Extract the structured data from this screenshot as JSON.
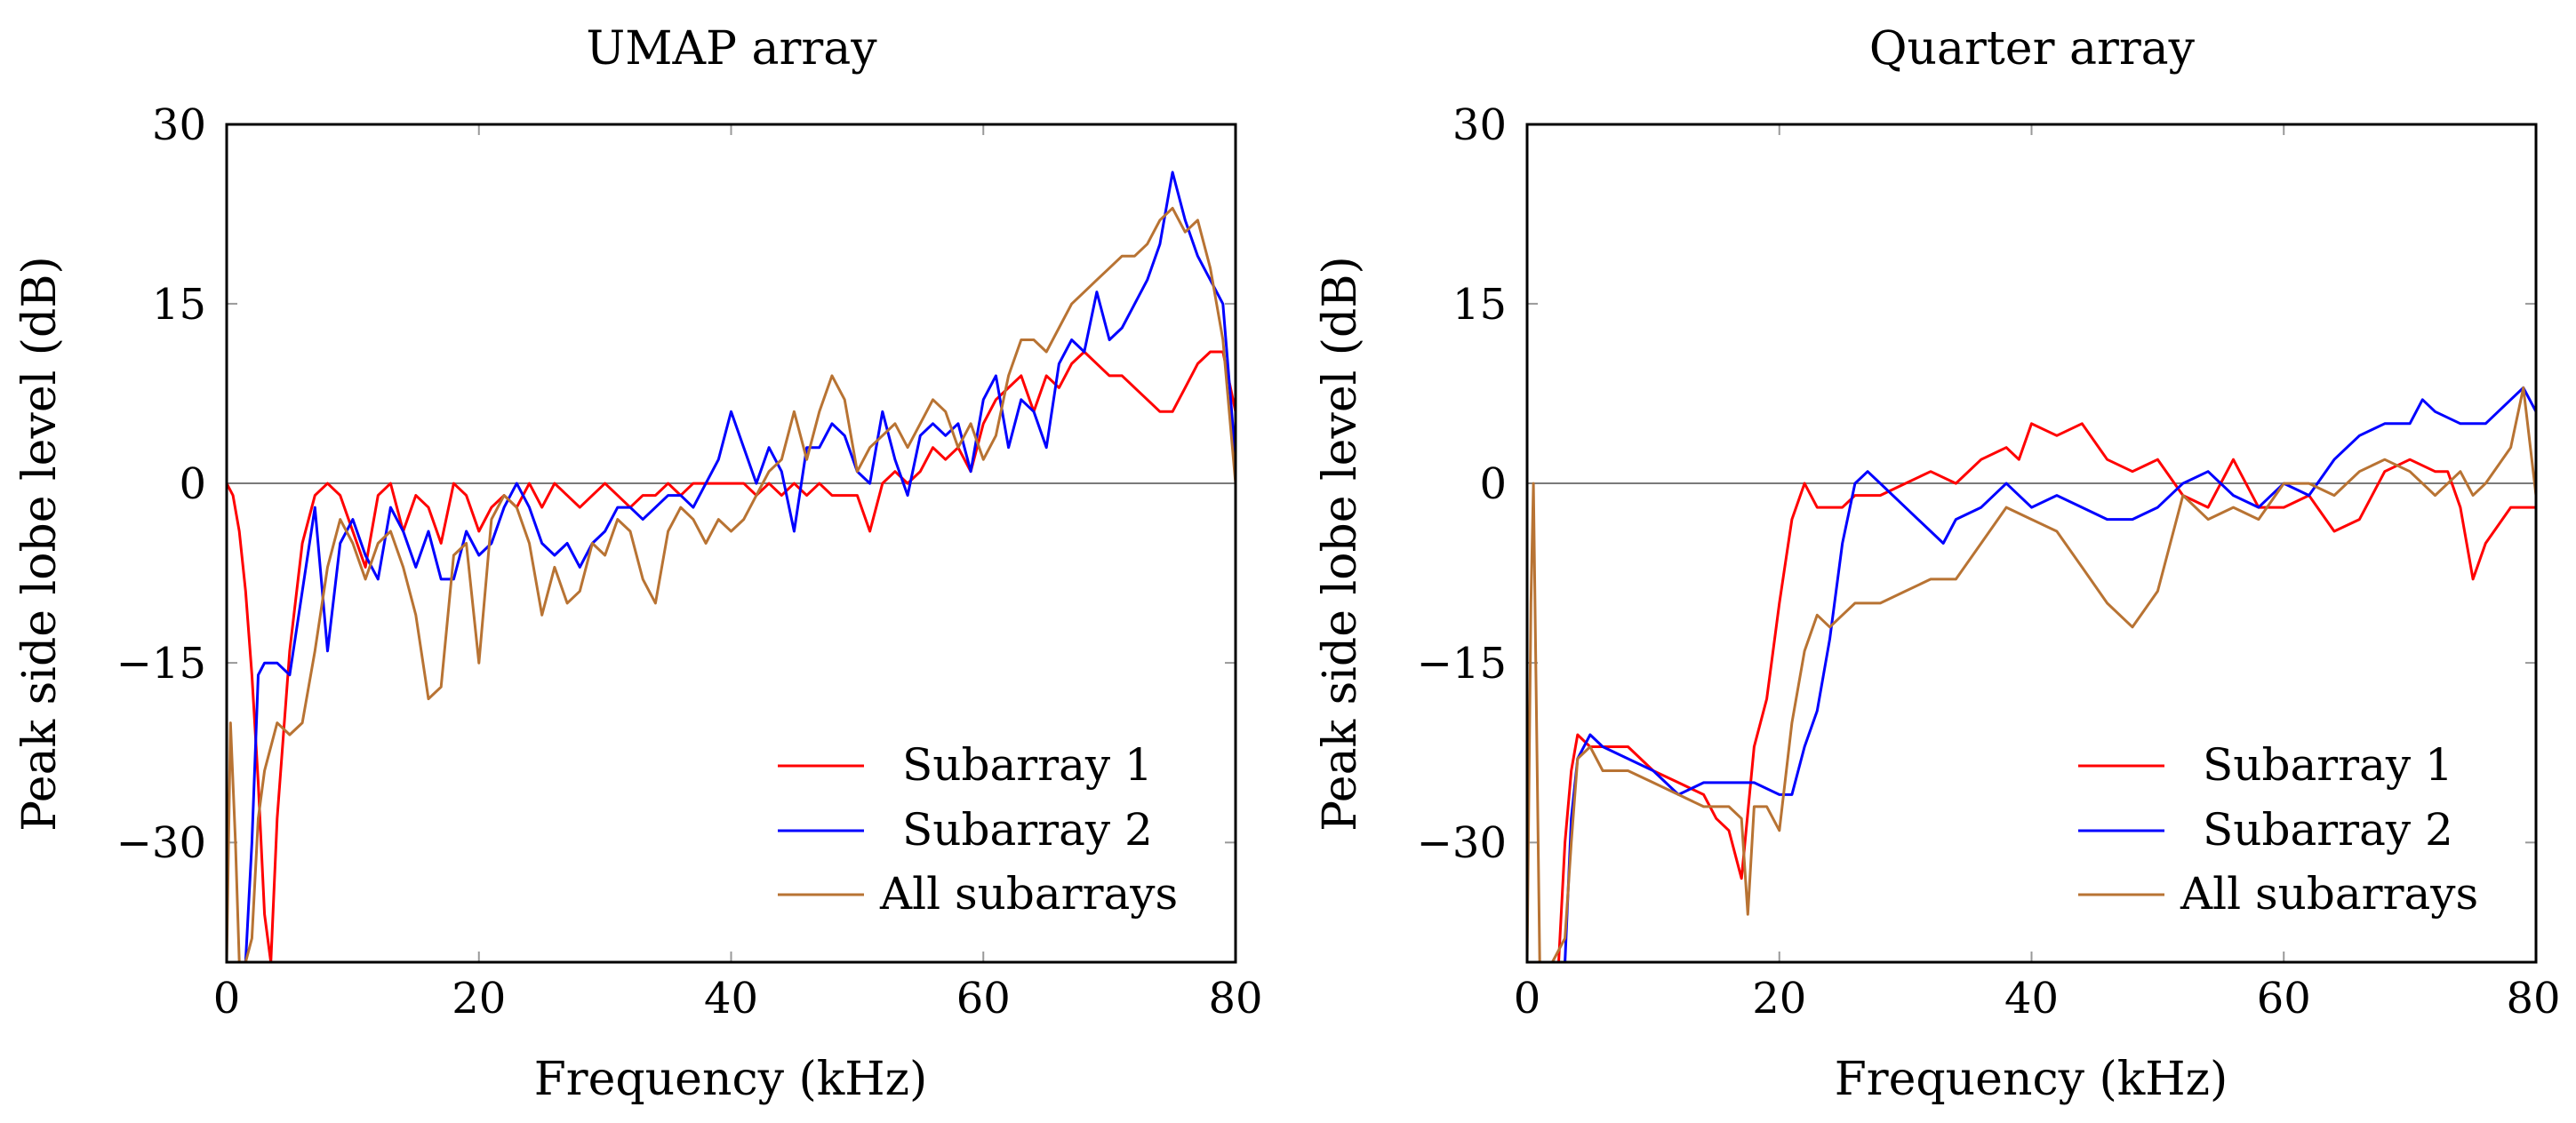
{
  "chart_data": [
    {
      "type": "line",
      "title": "UMAP array",
      "xlabel": "Frequency (kHz)",
      "ylabel": "Peak side lobe level (dB)",
      "xlim": [
        0,
        80
      ],
      "ylim": [
        -40,
        30
      ],
      "xticks": [
        "0",
        "20",
        "40",
        "60",
        "80"
      ],
      "yticks": [
        "−30",
        "−15",
        "0",
        "15",
        "30"
      ],
      "reference_line_y": 0,
      "grid": false,
      "legend_position": "bottom-right",
      "series": [
        {
          "name": "Subarray 1",
          "color": "#ff0000",
          "x": [
            0,
            0.5,
            1,
            1.5,
            2,
            2.5,
            3,
            3.5,
            4,
            5,
            6,
            7,
            8,
            9,
            10,
            11,
            12,
            13,
            14,
            15,
            16,
            17,
            18,
            19,
            20,
            21,
            22,
            23,
            24,
            25,
            26,
            27,
            28,
            29,
            30,
            31,
            32,
            33,
            34,
            35,
            36,
            37,
            38,
            39,
            40,
            41,
            42,
            43,
            44,
            45,
            46,
            47,
            48,
            49,
            50,
            51,
            52,
            53,
            54,
            55,
            56,
            57,
            58,
            59,
            60,
            61,
            62,
            63,
            64,
            65,
            66,
            67,
            68,
            69,
            70,
            71,
            72,
            73,
            74,
            75,
            76,
            77,
            78,
            79,
            80
          ],
          "y": [
            0,
            -1,
            -4,
            -9,
            -16,
            -25,
            -36,
            -42,
            -28,
            -14,
            -5,
            -1,
            0,
            -1,
            -4,
            -7,
            -1,
            0,
            -4,
            -1,
            -2,
            -5,
            0,
            -1,
            -4,
            -2,
            -1,
            -2,
            0,
            -2,
            0,
            -1,
            -2,
            -1,
            0,
            -1,
            -2,
            -1,
            -1,
            0,
            -1,
            0,
            0,
            0,
            0,
            0,
            -1,
            0,
            -1,
            0,
            -1,
            0,
            -1,
            -1,
            -1,
            -4,
            0,
            1,
            0,
            1,
            3,
            2,
            3,
            1,
            5,
            7,
            8,
            9,
            6,
            9,
            8,
            10,
            11,
            10,
            9,
            9,
            8,
            7,
            6,
            6,
            8,
            10,
            11,
            11,
            6
          ]
        },
        {
          "name": "Subarray 2",
          "color": "#0000ff",
          "x": [
            1.5,
            2,
            2.5,
            3,
            4,
            5,
            6,
            7,
            8,
            9,
            10,
            11,
            12,
            13,
            14,
            15,
            16,
            17,
            18,
            19,
            20,
            21,
            22,
            23,
            24,
            25,
            26,
            27,
            28,
            29,
            30,
            31,
            32,
            33,
            34,
            35,
            36,
            37,
            38,
            39,
            40,
            41,
            42,
            43,
            44,
            45,
            46,
            47,
            48,
            49,
            50,
            51,
            52,
            53,
            54,
            55,
            56,
            57,
            58,
            59,
            60,
            61,
            62,
            63,
            64,
            65,
            66,
            67,
            68,
            69,
            70,
            71,
            72,
            73,
            74,
            75,
            76,
            77,
            78,
            79,
            80
          ],
          "y": [
            -40,
            -30,
            -16,
            -15,
            -15,
            -16,
            -9,
            -2,
            -14,
            -5,
            -3,
            -6,
            -8,
            -2,
            -4,
            -7,
            -4,
            -8,
            -8,
            -4,
            -6,
            -5,
            -2,
            0,
            -2,
            -5,
            -6,
            -5,
            -7,
            -5,
            -4,
            -2,
            -2,
            -3,
            -2,
            -1,
            -1,
            -2,
            0,
            2,
            6,
            3,
            0,
            3,
            1,
            -4,
            3,
            3,
            5,
            4,
            1,
            0,
            6,
            2,
            -1,
            4,
            5,
            4,
            5,
            1,
            7,
            9,
            3,
            7,
            6,
            3,
            10,
            12,
            11,
            16,
            12,
            13,
            15,
            17,
            20,
            26,
            22,
            19,
            17,
            15,
            2
          ]
        },
        {
          "name": "All subarrays",
          "color": "#b87333",
          "x": [
            0,
            0.3,
            0.7,
            1,
            1.5,
            2,
            2.5,
            3,
            4,
            5,
            6,
            7,
            8,
            9,
            10,
            11,
            12,
            13,
            14,
            15,
            16,
            17,
            18,
            19,
            20,
            21,
            22,
            23,
            24,
            25,
            26,
            27,
            28,
            29,
            30,
            31,
            32,
            33,
            34,
            35,
            36,
            37,
            38,
            39,
            40,
            41,
            42,
            43,
            44,
            45,
            46,
            47,
            48,
            49,
            50,
            51,
            52,
            53,
            54,
            55,
            56,
            57,
            58,
            59,
            60,
            61,
            62,
            63,
            64,
            65,
            66,
            67,
            68,
            69,
            70,
            71,
            72,
            73,
            74,
            75,
            76,
            77,
            78,
            79,
            80
          ],
          "y": [
            -40,
            -20,
            -30,
            -40,
            -40,
            -38,
            -28,
            -24,
            -20,
            -21,
            -20,
            -14,
            -7,
            -3,
            -5,
            -8,
            -5,
            -4,
            -7,
            -11,
            -18,
            -17,
            -6,
            -5,
            -15,
            -3,
            -1,
            -2,
            -5,
            -11,
            -7,
            -10,
            -9,
            -5,
            -6,
            -3,
            -4,
            -8,
            -10,
            -4,
            -2,
            -3,
            -5,
            -3,
            -4,
            -3,
            -1,
            1,
            2,
            6,
            2,
            6,
            9,
            7,
            1,
            3,
            4,
            5,
            3,
            5,
            7,
            6,
            3,
            5,
            2,
            4,
            9,
            12,
            12,
            11,
            13,
            15,
            16,
            17,
            18,
            19,
            19,
            20,
            22,
            23,
            21,
            22,
            18,
            12,
            0
          ]
        }
      ]
    },
    {
      "type": "line",
      "title": "Quarter array",
      "xlabel": "Frequency (kHz)",
      "ylabel": "Peak side lobe level (dB)",
      "xlim": [
        0,
        80
      ],
      "ylim": [
        -40,
        30
      ],
      "xticks": [
        "0",
        "20",
        "40",
        "60",
        "80"
      ],
      "yticks": [
        "−30",
        "−15",
        "0",
        "15",
        "30"
      ],
      "reference_line_y": 0,
      "grid": false,
      "legend_position": "bottom-right",
      "series": [
        {
          "name": "Subarray 1",
          "color": "#ff0000",
          "x": [
            2.5,
            3,
            3.5,
            4,
            5,
            6,
            8,
            10,
            12,
            14,
            15,
            16,
            17,
            18,
            19,
            20,
            21,
            22,
            23,
            24,
            25,
            26,
            28,
            30,
            32,
            34,
            36,
            38,
            39,
            40,
            42,
            44,
            46,
            48,
            50,
            52,
            54,
            56,
            58,
            60,
            62,
            64,
            66,
            68,
            70,
            72,
            73,
            74,
            75,
            76,
            78,
            80
          ],
          "y": [
            -40,
            -30,
            -24,
            -21,
            -22,
            -22,
            -22,
            -24,
            -25,
            -26,
            -28,
            -29,
            -33,
            -22,
            -18,
            -10,
            -3,
            0,
            -2,
            -2,
            -2,
            -1,
            -1,
            0,
            1,
            0,
            2,
            3,
            2,
            5,
            4,
            5,
            2,
            1,
            2,
            -1,
            -2,
            2,
            -2,
            -2,
            -1,
            -4,
            -3,
            1,
            2,
            1,
            1,
            -2,
            -8,
            -5,
            -2,
            -2
          ]
        },
        {
          "name": "Subarray 2",
          "color": "#0000ff",
          "x": [
            3,
            3.5,
            4,
            5,
            6,
            8,
            10,
            12,
            14,
            16,
            18,
            20,
            21,
            22,
            23,
            24,
            25,
            26,
            27,
            28,
            30,
            32,
            33,
            34,
            36,
            38,
            40,
            42,
            44,
            46,
            48,
            50,
            52,
            54,
            56,
            58,
            60,
            62,
            64,
            66,
            68,
            70,
            71,
            72,
            74,
            76,
            78,
            79,
            80
          ],
          "y": [
            -40,
            -28,
            -23,
            -21,
            -22,
            -23,
            -24,
            -26,
            -25,
            -25,
            -25,
            -26,
            -26,
            -22,
            -19,
            -13,
            -5,
            0,
            1,
            0,
            -2,
            -4,
            -5,
            -3,
            -2,
            0,
            -2,
            -1,
            -2,
            -3,
            -3,
            -2,
            0,
            1,
            -1,
            -2,
            0,
            -1,
            2,
            4,
            5,
            5,
            7,
            6,
            5,
            5,
            7,
            8,
            6
          ]
        },
        {
          "name": "All subarrays",
          "color": "#b87333",
          "x": [
            0,
            0.3,
            0.5,
            1,
            1.5,
            2,
            3,
            3.5,
            4,
            5,
            6,
            8,
            10,
            12,
            14,
            16,
            17,
            17.5,
            18,
            19,
            20,
            21,
            22,
            23,
            24,
            25,
            26,
            28,
            30,
            32,
            34,
            36,
            38,
            40,
            42,
            44,
            46,
            48,
            50,
            51,
            52,
            54,
            56,
            58,
            60,
            62,
            64,
            66,
            68,
            70,
            72,
            74,
            75,
            76,
            78,
            79,
            80
          ],
          "y": [
            -40,
            -10,
            0,
            -40,
            -40,
            -40,
            -38,
            -30,
            -23,
            -22,
            -24,
            -24,
            -25,
            -26,
            -27,
            -27,
            -28,
            -36,
            -27,
            -27,
            -29,
            -20,
            -14,
            -11,
            -12,
            -11,
            -10,
            -10,
            -9,
            -8,
            -8,
            -5,
            -2,
            -3,
            -4,
            -7,
            -10,
            -12,
            -9,
            -5,
            -1,
            -3,
            -2,
            -3,
            0,
            0,
            -1,
            1,
            2,
            1,
            -1,
            1,
            -1,
            0,
            3,
            8,
            -1
          ]
        }
      ]
    }
  ]
}
